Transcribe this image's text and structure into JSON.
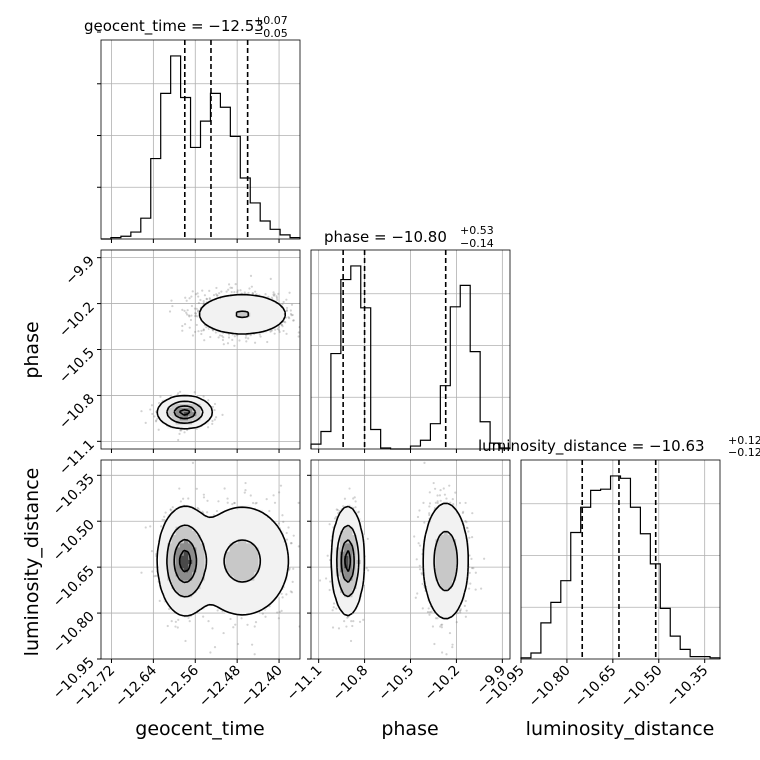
{
  "chart_data": {
    "type": "corner",
    "parameters": [
      "geocent_time",
      "phase",
      "luminosity_distance"
    ],
    "titles": [
      {
        "prefix": "geocent_time = −12.53",
        "sup": "+0.07",
        "sub": "−0.05"
      },
      {
        "prefix": "phase = −10.80",
        "sup": "+0.53",
        "sub": "−0.14"
      },
      {
        "prefix": "luminosity_distance = −10.63",
        "sup": "+0.12",
        "sub": "−0.12"
      }
    ],
    "axes": {
      "geocent_time": {
        "range": [
          -12.74,
          -12.36
        ],
        "ticks": [
          -12.72,
          -12.64,
          -12.56,
          -12.48,
          -12.4
        ],
        "tick_labels": [
          "−12.72",
          "−12.64",
          "−12.56",
          "−12.48",
          "−12.40"
        ]
      },
      "phase": {
        "range": [
          -11.15,
          -9.85
        ],
        "ticks": [
          -11.1,
          -10.8,
          -10.5,
          -10.2,
          -9.9
        ],
        "tick_labels": [
          "−11.1",
          "−10.8",
          "−10.5",
          "−10.2",
          "−9.9"
        ]
      },
      "luminosity_distance": {
        "range": [
          -10.95,
          -10.3
        ],
        "ticks": [
          -10.95,
          -10.8,
          -10.65,
          -10.5,
          -10.35
        ],
        "tick_labels": [
          "−10.95",
          "−10.80",
          "−10.65",
          "−10.50",
          "−10.35"
        ]
      }
    },
    "quantiles": {
      "geocent_time": [
        -12.58,
        -12.53,
        -12.46
      ],
      "phase": [
        -10.94,
        -10.8,
        -10.27
      ],
      "luminosity_distance": [
        -10.75,
        -10.63,
        -10.51
      ]
    },
    "histograms": {
      "geocent_time": {
        "edges_range": [
          -12.74,
          -12.36
        ],
        "bins": 20,
        "counts": [
          0,
          1,
          2,
          5,
          15,
          58,
          105,
          132,
          102,
          66,
          85,
          105,
          95,
          74,
          44,
          26,
          13,
          7,
          3,
          1
        ]
      },
      "phase": {
        "edges_range": [
          -11.15,
          -9.85
        ],
        "bins": 20,
        "counts": [
          5,
          18,
          98,
          174,
          188,
          145,
          20,
          1,
          0,
          0,
          3,
          9,
          26,
          65,
          146,
          168,
          100,
          28,
          6,
          1
        ]
      },
      "luminosity_distance": {
        "edges_range": [
          -10.95,
          -10.3
        ],
        "bins": 20,
        "counts": [
          1,
          5,
          30,
          47,
          65,
          105,
          126,
          140,
          141,
          152,
          150,
          126,
          104,
          79,
          42,
          19,
          8,
          2,
          2,
          1
        ]
      }
    },
    "modes": [
      {
        "weight": 0.5,
        "mean": {
          "geocent_time": -12.58,
          "phase": -10.91,
          "luminosity_distance": -10.63
        },
        "sd": {
          "geocent_time": 0.022,
          "phase": 0.045,
          "luminosity_distance": 0.075
        }
      },
      {
        "weight": 0.5,
        "mean": {
          "geocent_time": -12.47,
          "phase": -10.27,
          "luminosity_distance": -10.63
        },
        "sd": {
          "geocent_time": 0.045,
          "phase": 0.07,
          "luminosity_distance": 0.09
        }
      }
    ],
    "grid": true,
    "series_color": "#000000",
    "sample_color": "#7f7f7f"
  }
}
